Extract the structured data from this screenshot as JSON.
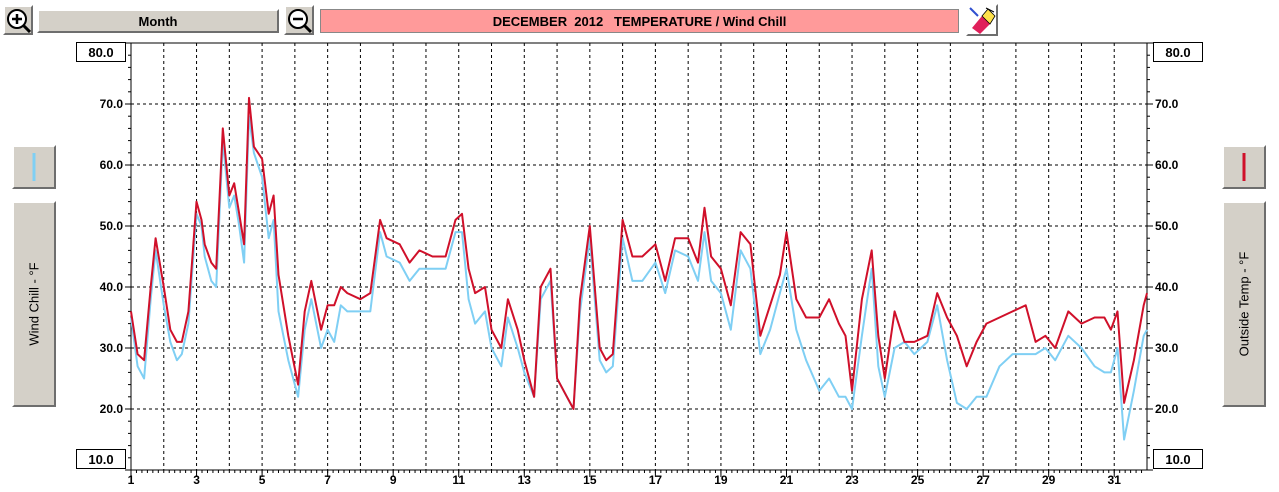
{
  "toolbar": {
    "period_label": "Month",
    "title": "DECEMBER  2012   TEMPERATURE / Wind Chill",
    "title_bg": "#ff9a9a",
    "zoom_in_icon": "zoom-in-magnifier-icon",
    "zoom_out_icon": "zoom-out-magnifier-icon",
    "print_icon": "paint-eraser-icon"
  },
  "left_axis": {
    "label": "Wind Chill - °F",
    "top_value": "80.0",
    "bottom_value": "10.0",
    "series_color": "#7fcff4"
  },
  "right_axis": {
    "label": "Outside Temp - °F",
    "top_value": "80.0",
    "bottom_value": "10.0",
    "series_color": "#d0102a"
  },
  "chart_data": {
    "type": "line",
    "title": "DECEMBER  2012   TEMPERATURE / Wind Chill",
    "xlabel": "",
    "ylabel_left": "Wind Chill - °F",
    "ylabel_right": "Outside Temp - °F",
    "xlim": [
      1,
      32
    ],
    "ylim": [
      10,
      80
    ],
    "y_ticks": [
      "20.0",
      "30.0",
      "40.0",
      "50.0",
      "60.0",
      "70.0"
    ],
    "x_ticks": [
      "1",
      "3",
      "5",
      "7",
      "9",
      "11",
      "13",
      "15",
      "17",
      "19",
      "21",
      "23",
      "25",
      "27",
      "29",
      "31"
    ],
    "grid": true,
    "series": [
      {
        "name": "Outside Temp - °F",
        "color": "#d0102a",
        "x": [
          1.0,
          1.2,
          1.4,
          1.6,
          1.75,
          2.0,
          2.2,
          2.4,
          2.55,
          2.75,
          3.0,
          3.15,
          3.25,
          3.45,
          3.6,
          3.8,
          4.0,
          4.15,
          4.3,
          4.45,
          4.6,
          4.75,
          5.0,
          5.2,
          5.35,
          5.5,
          5.8,
          6.1,
          6.3,
          6.5,
          6.8,
          7.0,
          7.2,
          7.4,
          7.6,
          8.0,
          8.3,
          8.6,
          8.8,
          9.2,
          9.5,
          9.8,
          10.2,
          10.6,
          10.9,
          11.1,
          11.3,
          11.5,
          11.8,
          12.0,
          12.3,
          12.5,
          12.8,
          13.0,
          13.3,
          13.5,
          13.8,
          14.0,
          14.3,
          14.5,
          14.7,
          15.0,
          15.3,
          15.5,
          15.7,
          16.0,
          16.3,
          16.6,
          17.0,
          17.3,
          17.6,
          18.0,
          18.3,
          18.5,
          18.7,
          19.0,
          19.3,
          19.6,
          19.9,
          20.2,
          20.5,
          20.8,
          21.0,
          21.3,
          21.6,
          22.0,
          22.3,
          22.6,
          22.8,
          23.0,
          23.3,
          23.6,
          23.8,
          24.0,
          24.3,
          24.6,
          24.9,
          25.3,
          25.6,
          25.9,
          26.2,
          26.5,
          26.8,
          27.1,
          27.5,
          27.9,
          28.3,
          28.6,
          28.9,
          29.2,
          29.6,
          30.0,
          30.4,
          30.7,
          30.9,
          31.1,
          31.3,
          31.6,
          31.9,
          32.0
        ],
        "y": [
          36,
          29,
          28,
          40,
          48,
          40,
          33,
          31,
          31,
          36,
          54,
          51,
          47,
          44,
          43,
          66,
          55,
          57,
          52,
          47,
          71,
          63,
          61,
          52,
          55,
          42,
          32,
          24,
          36,
          41,
          33,
          37,
          37,
          40,
          39,
          38,
          39,
          51,
          48,
          47,
          44,
          46,
          45,
          45,
          51,
          52,
          43,
          39,
          40,
          33,
          30,
          38,
          33,
          28,
          22,
          40,
          43,
          25,
          22,
          20,
          38,
          50,
          30,
          28,
          29,
          51,
          45,
          45,
          47,
          41,
          48,
          48,
          44,
          53,
          45,
          43,
          37,
          49,
          47,
          32,
          37,
          42,
          49,
          38,
          35,
          35,
          38,
          34,
          32,
          23,
          38,
          46,
          32,
          25,
          36,
          31,
          31,
          32,
          39,
          35,
          32,
          27,
          31,
          34,
          35,
          36,
          37,
          31,
          32,
          30,
          36,
          34,
          35,
          35,
          33,
          36,
          21,
          28,
          37,
          39
        ]
      },
      {
        "name": "Wind Chill - °F",
        "color": "#7fcff4",
        "x": [
          1.0,
          1.2,
          1.4,
          1.6,
          1.75,
          2.0,
          2.2,
          2.4,
          2.55,
          2.75,
          3.0,
          3.15,
          3.25,
          3.45,
          3.6,
          3.8,
          4.0,
          4.15,
          4.3,
          4.45,
          4.6,
          4.75,
          5.0,
          5.2,
          5.35,
          5.5,
          5.8,
          6.1,
          6.3,
          6.5,
          6.8,
          7.0,
          7.2,
          7.4,
          7.6,
          8.0,
          8.3,
          8.6,
          8.8,
          9.2,
          9.5,
          9.8,
          10.2,
          10.6,
          10.9,
          11.1,
          11.3,
          11.5,
          11.8,
          12.0,
          12.3,
          12.5,
          12.8,
          13.0,
          13.3,
          13.5,
          13.8,
          14.0,
          14.3,
          14.5,
          14.7,
          15.0,
          15.3,
          15.5,
          15.7,
          16.0,
          16.3,
          16.6,
          17.0,
          17.3,
          17.6,
          18.0,
          18.3,
          18.5,
          18.7,
          19.0,
          19.3,
          19.6,
          19.9,
          20.2,
          20.5,
          20.8,
          21.0,
          21.3,
          21.6,
          22.0,
          22.3,
          22.6,
          22.8,
          23.0,
          23.3,
          23.6,
          23.8,
          24.0,
          24.3,
          24.6,
          24.9,
          25.3,
          25.6,
          25.9,
          26.2,
          26.5,
          26.8,
          27.1,
          27.5,
          27.9,
          28.3,
          28.6,
          28.9,
          29.2,
          29.6,
          30.0,
          30.4,
          30.7,
          30.9,
          31.1,
          31.3,
          31.6,
          31.9,
          32.0
        ],
        "y": [
          35,
          27,
          25,
          38,
          46,
          37,
          31,
          28,
          29,
          34,
          52,
          50,
          45,
          41,
          40,
          64,
          53,
          55,
          50,
          44,
          68,
          62,
          58,
          48,
          51,
          36,
          28,
          22,
          33,
          38,
          30,
          33,
          31,
          37,
          36,
          36,
          36,
          49,
          45,
          44,
          41,
          43,
          43,
          43,
          49,
          49,
          38,
          34,
          36,
          30,
          27,
          35,
          30,
          26,
          22,
          38,
          41,
          25,
          22,
          20,
          36,
          48,
          28,
          26,
          27,
          48,
          41,
          41,
          44,
          39,
          46,
          45,
          41,
          49,
          41,
          39,
          33,
          46,
          43,
          29,
          33,
          39,
          43,
          33,
          28,
          23,
          25,
          22,
          22,
          20,
          32,
          43,
          27,
          22,
          30,
          31,
          29,
          31,
          37,
          28,
          21,
          20,
          22,
          22,
          27,
          29,
          29,
          29,
          30,
          28,
          32,
          30,
          27,
          26,
          26,
          30,
          15,
          23,
          32,
          33
        ]
      }
    ]
  }
}
